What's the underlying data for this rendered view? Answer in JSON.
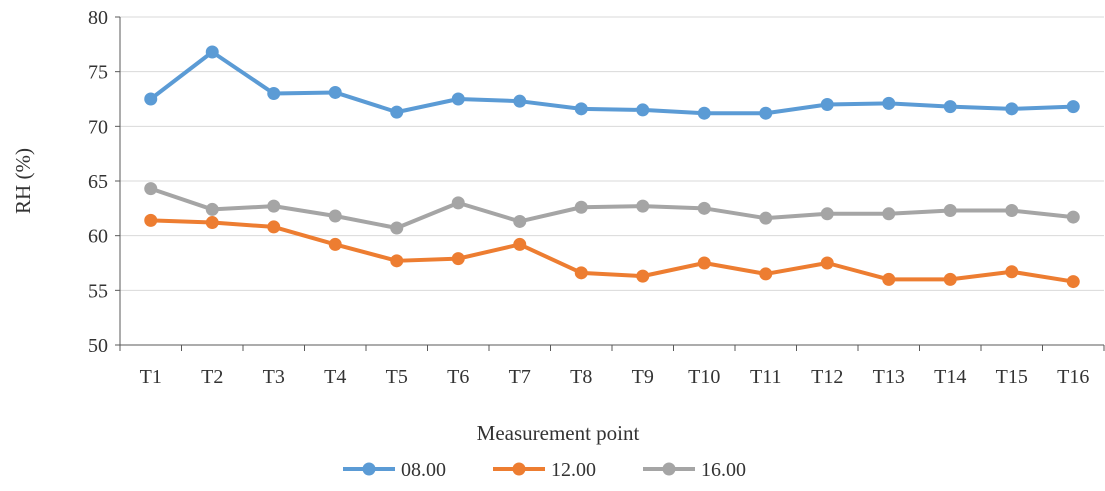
{
  "chart_data": {
    "type": "line",
    "title": "",
    "xlabel": "Measurement point",
    "ylabel": "RH (%)",
    "ylim": [
      50,
      80
    ],
    "yticks": [
      50,
      55,
      60,
      65,
      70,
      75,
      80
    ],
    "categories": [
      "T1",
      "T2",
      "T3",
      "T4",
      "T5",
      "T6",
      "T7",
      "T8",
      "T9",
      "T10",
      "T11",
      "T12",
      "T13",
      "T14",
      "T15",
      "T16"
    ],
    "grid": "horizontal",
    "legend_position": "bottom",
    "series": [
      {
        "name": "08.00",
        "color": "#5B9BD5",
        "values": [
          72.5,
          76.8,
          73.0,
          73.1,
          71.3,
          72.5,
          72.3,
          71.6,
          71.5,
          71.2,
          71.2,
          72.0,
          72.1,
          71.8,
          71.6,
          71.8
        ]
      },
      {
        "name": "12.00",
        "color": "#ED7D31",
        "values": [
          61.4,
          61.2,
          60.8,
          59.2,
          57.7,
          57.9,
          59.2,
          56.6,
          56.3,
          57.5,
          56.5,
          57.5,
          56.0,
          56.0,
          56.7,
          55.8
        ]
      },
      {
        "name": "16.00",
        "color": "#A5A5A5",
        "values": [
          64.3,
          62.4,
          62.7,
          61.8,
          60.7,
          63.0,
          61.3,
          62.6,
          62.7,
          62.5,
          61.6,
          62.0,
          62.0,
          62.3,
          62.3,
          61.7
        ]
      }
    ]
  }
}
